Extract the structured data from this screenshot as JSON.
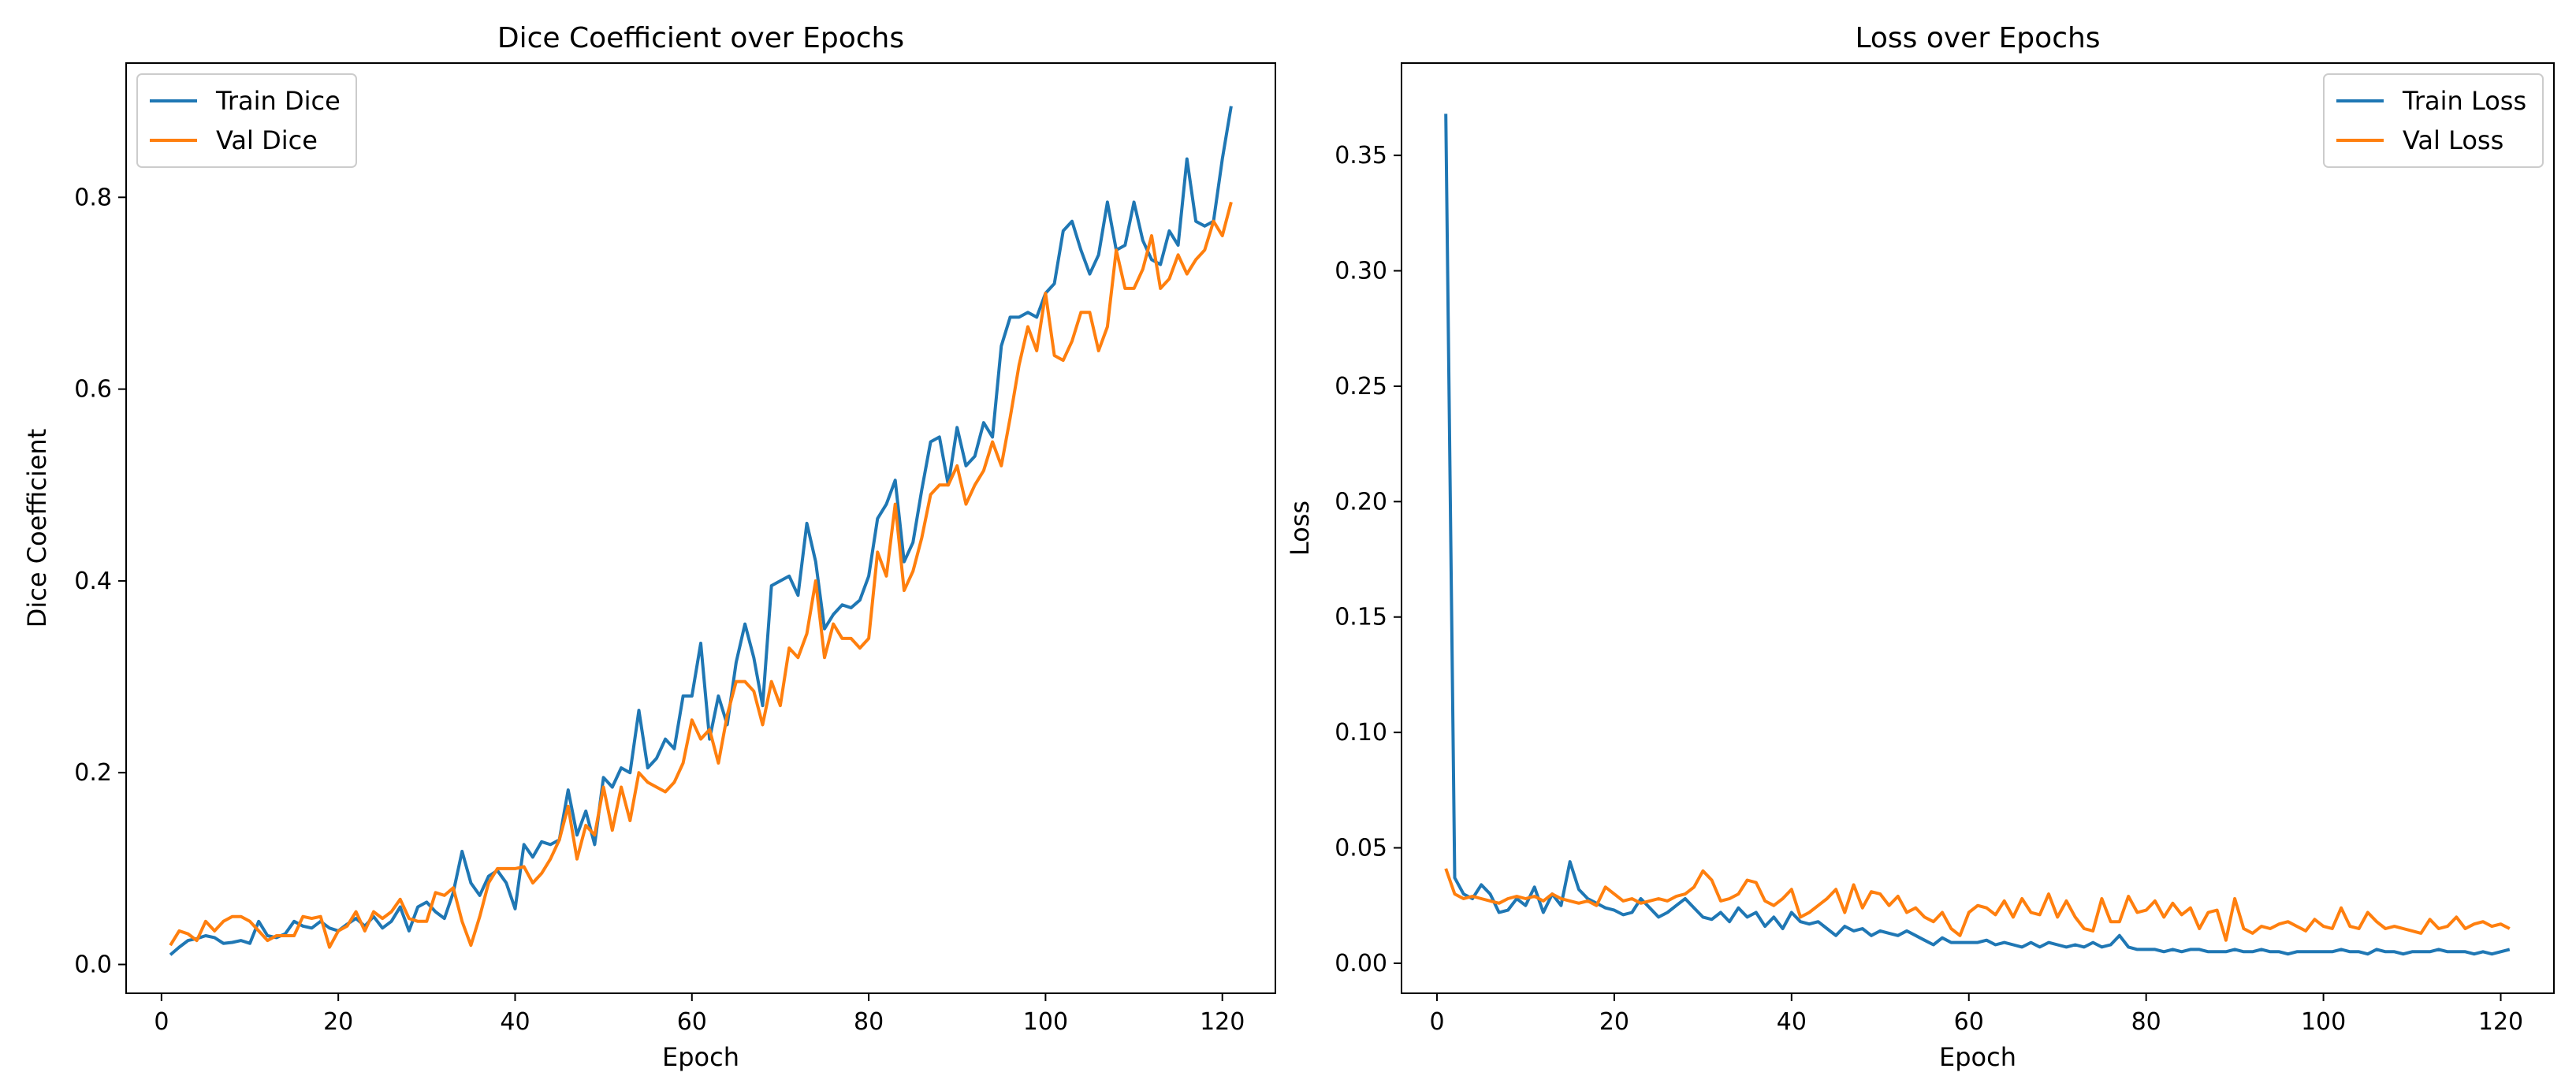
{
  "chart_data": [
    {
      "type": "line",
      "title": "Dice Coefficient over Epochs",
      "xlabel": "Epoch",
      "ylabel": "Dice Coefficient",
      "xlim": [
        -4,
        126
      ],
      "ylim": [
        -0.03,
        0.94
      ],
      "xticks": [
        0,
        20,
        40,
        60,
        80,
        100,
        120
      ],
      "yticks": [
        0.0,
        0.2,
        0.4,
        0.6,
        0.8
      ],
      "ytick_labels": [
        "0.0",
        "0.2",
        "0.4",
        "0.6",
        "0.8"
      ],
      "legend_position": "upper-left",
      "grid": false,
      "series": [
        {
          "name": "Train Dice",
          "color": "#1f77b4",
          "x_start": 1,
          "values": [
            0.01,
            0.018,
            0.025,
            0.027,
            0.03,
            0.028,
            0.022,
            0.023,
            0.025,
            0.022,
            0.045,
            0.03,
            0.028,
            0.032,
            0.045,
            0.04,
            0.038,
            0.045,
            0.038,
            0.035,
            0.042,
            0.048,
            0.04,
            0.05,
            0.038,
            0.045,
            0.06,
            0.035,
            0.06,
            0.065,
            0.055,
            0.048,
            0.075,
            0.118,
            0.085,
            0.072,
            0.092,
            0.098,
            0.085,
            0.058,
            0.125,
            0.112,
            0.128,
            0.125,
            0.13,
            0.182,
            0.135,
            0.16,
            0.125,
            0.195,
            0.185,
            0.205,
            0.2,
            0.265,
            0.205,
            0.215,
            0.235,
            0.225,
            0.28,
            0.28,
            0.335,
            0.235,
            0.28,
            0.25,
            0.315,
            0.355,
            0.32,
            0.27,
            0.395,
            0.4,
            0.405,
            0.385,
            0.46,
            0.42,
            0.35,
            0.365,
            0.375,
            0.372,
            0.38,
            0.405,
            0.465,
            0.48,
            0.505,
            0.42,
            0.44,
            0.495,
            0.545,
            0.55,
            0.5,
            0.56,
            0.52,
            0.53,
            0.565,
            0.55,
            0.645,
            0.675,
            0.675,
            0.68,
            0.675,
            0.7,
            0.71,
            0.765,
            0.775,
            0.745,
            0.72,
            0.74,
            0.795,
            0.745,
            0.75,
            0.795,
            0.755,
            0.735,
            0.73,
            0.765,
            0.75,
            0.84,
            0.775,
            0.77,
            0.775,
            0.84,
            0.895
          ]
        },
        {
          "name": "Val Dice",
          "color": "#ff7f0e",
          "x_start": 1,
          "values": [
            0.02,
            0.035,
            0.032,
            0.025,
            0.045,
            0.035,
            0.045,
            0.05,
            0.05,
            0.045,
            0.035,
            0.025,
            0.03,
            0.03,
            0.03,
            0.05,
            0.048,
            0.05,
            0.018,
            0.035,
            0.04,
            0.055,
            0.035,
            0.055,
            0.048,
            0.055,
            0.068,
            0.048,
            0.045,
            0.045,
            0.075,
            0.072,
            0.08,
            0.045,
            0.02,
            0.05,
            0.085,
            0.1,
            0.1,
            0.1,
            0.102,
            0.085,
            0.095,
            0.11,
            0.13,
            0.165,
            0.11,
            0.145,
            0.135,
            0.185,
            0.14,
            0.185,
            0.15,
            0.2,
            0.19,
            0.185,
            0.18,
            0.19,
            0.21,
            0.255,
            0.235,
            0.245,
            0.21,
            0.26,
            0.295,
            0.295,
            0.285,
            0.25,
            0.295,
            0.27,
            0.33,
            0.32,
            0.345,
            0.4,
            0.32,
            0.355,
            0.34,
            0.34,
            0.33,
            0.34,
            0.43,
            0.405,
            0.48,
            0.39,
            0.41,
            0.445,
            0.49,
            0.5,
            0.5,
            0.52,
            0.48,
            0.5,
            0.515,
            0.545,
            0.52,
            0.57,
            0.625,
            0.665,
            0.64,
            0.7,
            0.635,
            0.63,
            0.65,
            0.68,
            0.68,
            0.64,
            0.665,
            0.745,
            0.705,
            0.705,
            0.725,
            0.76,
            0.705,
            0.715,
            0.74,
            0.72,
            0.735,
            0.745,
            0.775,
            0.76,
            0.795
          ]
        }
      ]
    },
    {
      "type": "line",
      "title": "Loss over Epochs",
      "xlabel": "Epoch",
      "ylabel": "Loss",
      "xlim": [
        -4,
        126
      ],
      "ylim": [
        -0.013,
        0.39
      ],
      "xticks": [
        0,
        20,
        40,
        60,
        80,
        100,
        120
      ],
      "yticks": [
        0.0,
        0.05,
        0.1,
        0.15,
        0.2,
        0.25,
        0.3,
        0.35
      ],
      "ytick_labels": [
        "0.00",
        "0.05",
        "0.10",
        "0.15",
        "0.20",
        "0.25",
        "0.30",
        "0.35"
      ],
      "legend_position": "upper-right",
      "grid": false,
      "series": [
        {
          "name": "Train Loss",
          "color": "#1f77b4",
          "x_start": 1,
          "values": [
            0.368,
            0.037,
            0.03,
            0.028,
            0.034,
            0.03,
            0.022,
            0.023,
            0.028,
            0.025,
            0.033,
            0.022,
            0.03,
            0.025,
            0.044,
            0.032,
            0.028,
            0.026,
            0.024,
            0.023,
            0.021,
            0.022,
            0.028,
            0.024,
            0.02,
            0.022,
            0.025,
            0.028,
            0.024,
            0.02,
            0.019,
            0.022,
            0.018,
            0.024,
            0.02,
            0.022,
            0.016,
            0.02,
            0.015,
            0.022,
            0.018,
            0.017,
            0.018,
            0.015,
            0.012,
            0.016,
            0.014,
            0.015,
            0.012,
            0.014,
            0.013,
            0.012,
            0.014,
            0.012,
            0.01,
            0.008,
            0.011,
            0.009,
            0.009,
            0.009,
            0.009,
            0.01,
            0.008,
            0.009,
            0.008,
            0.007,
            0.009,
            0.007,
            0.009,
            0.008,
            0.007,
            0.008,
            0.007,
            0.009,
            0.007,
            0.008,
            0.012,
            0.007,
            0.006,
            0.006,
            0.006,
            0.005,
            0.006,
            0.005,
            0.006,
            0.006,
            0.005,
            0.005,
            0.005,
            0.006,
            0.005,
            0.005,
            0.006,
            0.005,
            0.005,
            0.004,
            0.005,
            0.005,
            0.005,
            0.005,
            0.005,
            0.006,
            0.005,
            0.005,
            0.004,
            0.006,
            0.005,
            0.005,
            0.004,
            0.005,
            0.005,
            0.005,
            0.006,
            0.005,
            0.005,
            0.005,
            0.004,
            0.005,
            0.004,
            0.005,
            0.006
          ]
        },
        {
          "name": "Val Loss",
          "color": "#ff7f0e",
          "x_start": 1,
          "values": [
            0.041,
            0.03,
            0.028,
            0.029,
            0.028,
            0.027,
            0.026,
            0.028,
            0.029,
            0.028,
            0.029,
            0.027,
            0.03,
            0.028,
            0.027,
            0.026,
            0.027,
            0.025,
            0.033,
            0.03,
            0.027,
            0.028,
            0.026,
            0.027,
            0.028,
            0.027,
            0.029,
            0.03,
            0.033,
            0.04,
            0.036,
            0.027,
            0.028,
            0.03,
            0.036,
            0.035,
            0.027,
            0.025,
            0.028,
            0.032,
            0.02,
            0.022,
            0.025,
            0.028,
            0.032,
            0.022,
            0.034,
            0.024,
            0.031,
            0.03,
            0.025,
            0.029,
            0.022,
            0.024,
            0.02,
            0.018,
            0.022,
            0.015,
            0.012,
            0.022,
            0.025,
            0.024,
            0.021,
            0.027,
            0.02,
            0.028,
            0.022,
            0.021,
            0.03,
            0.02,
            0.027,
            0.02,
            0.015,
            0.014,
            0.028,
            0.018,
            0.018,
            0.029,
            0.022,
            0.023,
            0.027,
            0.02,
            0.026,
            0.021,
            0.024,
            0.015,
            0.022,
            0.023,
            0.01,
            0.028,
            0.015,
            0.013,
            0.016,
            0.015,
            0.017,
            0.018,
            0.016,
            0.014,
            0.019,
            0.016,
            0.015,
            0.024,
            0.016,
            0.015,
            0.022,
            0.018,
            0.015,
            0.016,
            0.015,
            0.014,
            0.013,
            0.019,
            0.015,
            0.016,
            0.02,
            0.015,
            0.017,
            0.018,
            0.016,
            0.017,
            0.015
          ]
        }
      ]
    }
  ]
}
